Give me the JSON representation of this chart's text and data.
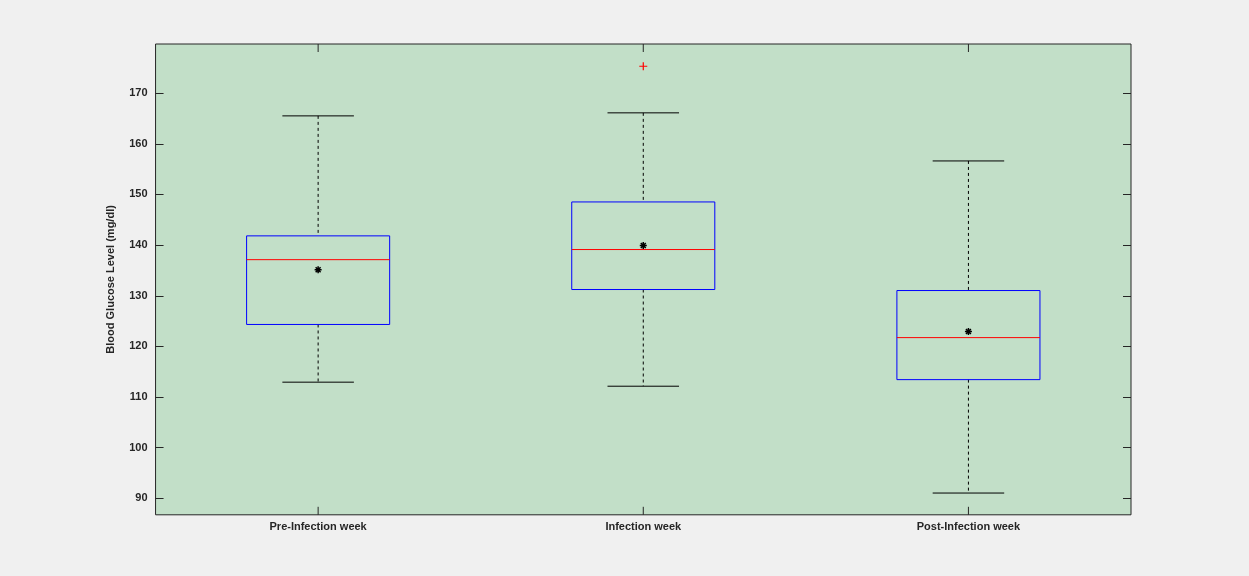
{
  "chart_data": {
    "type": "box",
    "ylabel": "Blood Glucose Level (mg/dl)",
    "categories": [
      "Pre-Infection week",
      "Infection week",
      "Post-Infection week"
    ],
    "color": "#0000ff",
    "boxes": [
      {
        "low": 112.9,
        "q1": 124.3,
        "median": 137.1,
        "q3": 141.8,
        "high": 165.5,
        "mean": 135.1
      },
      {
        "low": 112.1,
        "q1": 131.2,
        "median": 139.1,
        "q3": 148.5,
        "high": 166.1,
        "mean": 139.9,
        "outliers": [
          175.3
        ]
      },
      {
        "low": 91.0,
        "q1": 113.4,
        "median": 121.7,
        "q3": 131.0,
        "high": 156.6,
        "mean": 122.9
      }
    ],
    "ylim": [
      86.7,
      179.7
    ],
    "yticks": [
      90,
      100,
      110,
      120,
      130,
      140,
      150,
      160,
      170
    ],
    "grid": false,
    "legend": false
  }
}
